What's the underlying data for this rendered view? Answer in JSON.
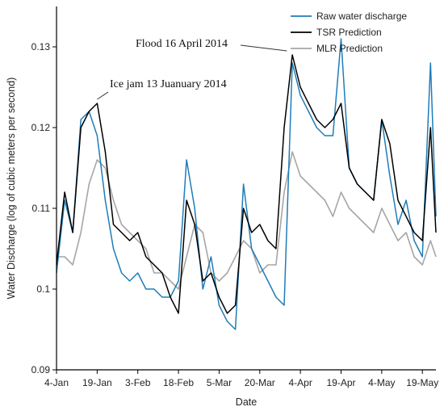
{
  "chart_data": {
    "type": "line",
    "title": "",
    "xlabel": "Date",
    "ylabel": "Water Discharge (log of cubic meters per second)",
    "ylim": [
      0.09,
      0.135
    ],
    "yticks": [
      0.09,
      0.1,
      0.11,
      0.12,
      0.13
    ],
    "ytick_labels": [
      "0.09",
      "0.1",
      "0.11",
      "0.12",
      "0.13"
    ],
    "xlim": [
      "2014-01-04",
      "2014-05-24"
    ],
    "xticks": [
      "4-Jan",
      "19-Jan",
      "3-Feb",
      "18-Feb",
      "5-Mar",
      "20-Mar",
      "4-Apr",
      "19-Apr",
      "4-May",
      "19-May"
    ],
    "grid": false,
    "legend_position": "top-right",
    "x": [
      "2014-01-04",
      "2014-01-07",
      "2014-01-10",
      "2014-01-13",
      "2014-01-16",
      "2014-01-19",
      "2014-01-22",
      "2014-01-25",
      "2014-01-28",
      "2014-01-31",
      "2014-02-03",
      "2014-02-06",
      "2014-02-09",
      "2014-02-12",
      "2014-02-15",
      "2014-02-18",
      "2014-02-21",
      "2014-02-24",
      "2014-02-27",
      "2014-03-02",
      "2014-03-05",
      "2014-03-08",
      "2014-03-11",
      "2014-03-14",
      "2014-03-17",
      "2014-03-20",
      "2014-03-23",
      "2014-03-26",
      "2014-03-29",
      "2014-04-01",
      "2014-04-04",
      "2014-04-07",
      "2014-04-10",
      "2014-04-13",
      "2014-04-16",
      "2014-04-19",
      "2014-04-22",
      "2014-04-25",
      "2014-04-28",
      "2014-05-01",
      "2014-05-04",
      "2014-05-07",
      "2014-05-10",
      "2014-05-13",
      "2014-05-16",
      "2014-05-19",
      "2014-05-22",
      "2014-05-24"
    ],
    "series": [
      {
        "name": "Raw water discharge",
        "color": "#1f7db8",
        "values": [
          0.102,
          0.111,
          0.107,
          0.121,
          0.122,
          0.119,
          0.111,
          0.105,
          0.102,
          0.101,
          0.102,
          0.1,
          0.1,
          0.099,
          0.099,
          0.101,
          0.116,
          0.11,
          0.1,
          0.104,
          0.098,
          0.096,
          0.095,
          0.113,
          0.105,
          0.103,
          0.101,
          0.099,
          0.098,
          0.128,
          0.124,
          0.122,
          0.12,
          0.119,
          0.119,
          0.131,
          0.115,
          0.113,
          0.112,
          0.111,
          0.121,
          0.114,
          0.108,
          0.111,
          0.106,
          0.104,
          0.128,
          0.109
        ]
      },
      {
        "name": "TSR Prediction",
        "color": "#000000",
        "values": [
          0.103,
          0.112,
          0.107,
          0.12,
          0.122,
          0.123,
          0.117,
          0.108,
          0.107,
          0.106,
          0.107,
          0.104,
          0.103,
          0.102,
          0.099,
          0.097,
          0.111,
          0.108,
          0.101,
          0.102,
          0.099,
          0.097,
          0.098,
          0.11,
          0.107,
          0.108,
          0.106,
          0.105,
          0.12,
          0.129,
          0.125,
          0.123,
          0.121,
          0.12,
          0.121,
          0.123,
          0.115,
          0.113,
          0.112,
          0.111,
          0.121,
          0.118,
          0.111,
          0.109,
          0.107,
          0.106,
          0.12,
          0.107
        ]
      },
      {
        "name": "MLR Prediction",
        "color": "#a6a6a6",
        "values": [
          0.104,
          0.104,
          0.103,
          0.107,
          0.113,
          0.116,
          0.115,
          0.111,
          0.108,
          0.107,
          0.106,
          0.105,
          0.102,
          0.102,
          0.101,
          0.1,
          0.104,
          0.108,
          0.107,
          0.102,
          0.101,
          0.102,
          0.104,
          0.106,
          0.105,
          0.102,
          0.103,
          0.103,
          0.112,
          0.117,
          0.114,
          0.113,
          0.112,
          0.111,
          0.109,
          0.112,
          0.11,
          0.109,
          0.108,
          0.107,
          0.11,
          0.108,
          0.106,
          0.107,
          0.104,
          0.103,
          0.106,
          0.104
        ]
      }
    ],
    "annotations": [
      {
        "text": "Flood 16 April 2014",
        "x": "2014-03-30",
        "y": 0.1295
      },
      {
        "text": "Ice jam 13 Juanuary 2014",
        "x": "2014-01-19",
        "y": 0.1235
      }
    ]
  }
}
